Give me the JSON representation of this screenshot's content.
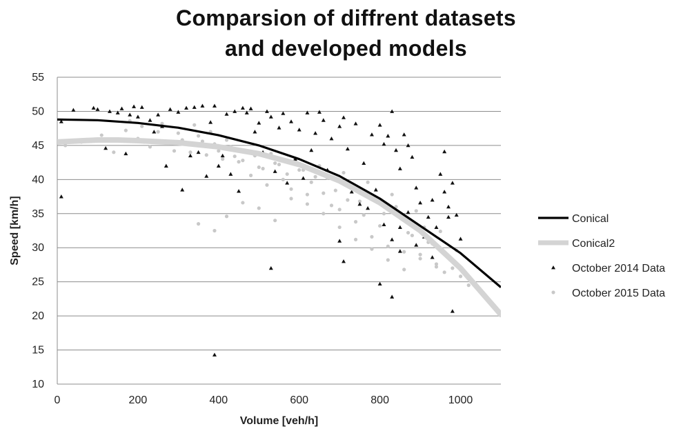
{
  "chart_data": {
    "type": "scatter",
    "title": [
      "Comparsion of diffrent datasets",
      "and developed models"
    ],
    "xlabel": "Volume [veh/h]",
    "ylabel": "Speed [km/h]",
    "xlim": [
      0,
      1100
    ],
    "ylim": [
      10,
      55
    ],
    "xticks": [
      0,
      200,
      400,
      600,
      800,
      1000
    ],
    "yticks": [
      10,
      15,
      20,
      25,
      30,
      35,
      40,
      45,
      50,
      55
    ],
    "grid": "horizontal",
    "legend_position": "right",
    "colors": {
      "conical": "#000000",
      "conical2": "#d4d4d4",
      "data2014": "#111111",
      "data2015": "#c8c8c8"
    },
    "series": [
      {
        "name": "Conical",
        "kind": "line",
        "x": [
          0,
          100,
          200,
          300,
          400,
          500,
          600,
          700,
          800,
          900,
          1000,
          1100
        ],
        "values": [
          48.8,
          48.7,
          48.3,
          47.6,
          46.5,
          45.0,
          43.0,
          40.5,
          37.2,
          33.2,
          29.2,
          24.2
        ]
      },
      {
        "name": "Conical2",
        "kind": "line",
        "x": [
          0,
          100,
          150,
          200,
          300,
          400,
          500,
          600,
          700,
          800,
          900,
          1000,
          1100
        ],
        "values": [
          45.5,
          45.8,
          45.8,
          45.7,
          45.4,
          44.8,
          43.8,
          42.2,
          39.8,
          36.6,
          32.5,
          27.0,
          20.2
        ]
      },
      {
        "name": "October 2014 Data",
        "kind": "points",
        "marker": "triangle",
        "x": [
          10,
          40,
          90,
          100,
          130,
          150,
          160,
          180,
          190,
          200,
          210,
          230,
          250,
          260,
          280,
          300,
          320,
          340,
          360,
          380,
          390,
          420,
          440,
          460,
          470,
          480,
          490,
          500,
          520,
          530,
          550,
          560,
          580,
          600,
          620,
          640,
          650,
          660,
          680,
          700,
          710,
          720,
          740,
          760,
          780,
          800,
          810,
          820,
          830,
          840,
          850,
          860,
          870,
          880,
          890,
          900,
          920,
          930,
          940,
          950,
          960,
          970,
          980,
          990,
          1000,
          10,
          120,
          170,
          220,
          240,
          270,
          310,
          330,
          350,
          370,
          400,
          410,
          430,
          450,
          510,
          540,
          570,
          590,
          610,
          630,
          670,
          690,
          730,
          750,
          770,
          790,
          810,
          830,
          850,
          870,
          890,
          910,
          930,
          950,
          970,
          990,
          390,
          530,
          800,
          830,
          960,
          980,
          700,
          710,
          850
        ],
        "values": [
          48.5,
          50.2,
          50.5,
          50.3,
          50.0,
          49.8,
          50.4,
          49.5,
          50.7,
          49.2,
          50.6,
          48.7,
          49.5,
          47.8,
          50.3,
          49.9,
          50.5,
          50.6,
          50.8,
          48.4,
          50.8,
          49.6,
          50.0,
          50.5,
          49.8,
          50.4,
          47.0,
          48.3,
          50.0,
          49.2,
          47.6,
          49.7,
          48.5,
          47.3,
          49.8,
          46.8,
          49.9,
          48.7,
          46.0,
          47.8,
          49.1,
          44.5,
          48.2,
          42.4,
          46.6,
          48.0,
          45.2,
          46.4,
          50.0,
          44.3,
          41.6,
          46.6,
          45.0,
          43.3,
          38.8,
          36.6,
          34.5,
          37.0,
          33.0,
          40.8,
          38.2,
          36.0,
          39.5,
          34.8,
          31.3,
          37.5,
          44.6,
          43.8,
          45.5,
          47.0,
          42.0,
          38.5,
          43.5,
          44.0,
          40.5,
          42.0,
          43.5,
          40.8,
          38.3,
          44.0,
          41.2,
          39.5,
          43.0,
          40.2,
          44.3,
          41.4,
          40.0,
          38.2,
          36.4,
          35.8,
          38.5,
          33.4,
          31.2,
          33.0,
          35.2,
          30.4,
          31.6,
          28.6,
          30.0,
          34.5,
          27.5,
          14.3,
          27.0,
          24.7,
          22.8,
          44.1,
          20.7,
          31.0,
          28.0,
          29.5
        ],
        "marker_size": 3
      },
      {
        "name": "October 2015 Data",
        "kind": "points",
        "marker": "dot",
        "x": [
          20,
          60,
          110,
          140,
          170,
          200,
          230,
          250,
          270,
          290,
          310,
          330,
          350,
          370,
          390,
          410,
          430,
          450,
          470,
          490,
          510,
          530,
          550,
          570,
          590,
          610,
          630,
          650,
          670,
          690,
          710,
          730,
          750,
          770,
          790,
          810,
          830,
          850,
          870,
          890,
          910,
          930,
          950,
          970,
          990,
          180,
          210,
          260,
          300,
          340,
          360,
          380,
          400,
          420,
          440,
          460,
          480,
          500,
          520,
          540,
          560,
          580,
          600,
          620,
          640,
          660,
          680,
          700,
          720,
          740,
          760,
          780,
          800,
          820,
          840,
          860,
          880,
          900,
          920,
          940,
          960,
          980,
          1000,
          1020,
          350,
          390,
          420,
          460,
          500,
          540,
          580,
          620,
          660,
          700,
          740,
          780,
          820,
          860,
          900,
          940
        ],
        "values": [
          45.0,
          45.5,
          46.5,
          44.0,
          47.2,
          46.0,
          44.8,
          47.0,
          45.5,
          44.2,
          45.8,
          44.0,
          46.4,
          43.6,
          45.2,
          43.0,
          44.8,
          42.6,
          44.2,
          43.5,
          41.6,
          43.8,
          42.2,
          40.8,
          43.0,
          41.4,
          39.6,
          42.0,
          40.2,
          38.4,
          41.0,
          39.0,
          36.8,
          39.6,
          37.4,
          35.0,
          37.8,
          34.6,
          32.2,
          35.4,
          33.0,
          30.6,
          32.4,
          28.8,
          29.6,
          48.6,
          47.8,
          48.2,
          46.8,
          48.0,
          45.6,
          47.0,
          44.2,
          45.8,
          43.4,
          42.8,
          40.6,
          41.8,
          39.2,
          42.4,
          40.0,
          38.6,
          41.4,
          37.8,
          40.4,
          38.0,
          36.2,
          35.6,
          37.0,
          33.8,
          34.8,
          31.6,
          33.2,
          30.2,
          36.0,
          29.4,
          31.8,
          28.4,
          30.8,
          27.6,
          26.4,
          27.0,
          25.8,
          24.5,
          33.5,
          32.5,
          34.6,
          36.6,
          35.8,
          34.0,
          37.2,
          36.4,
          35.0,
          33.0,
          31.2,
          29.8,
          28.2,
          26.8,
          29.0,
          27.2
        ],
        "marker_size": 2.6
      }
    ]
  }
}
